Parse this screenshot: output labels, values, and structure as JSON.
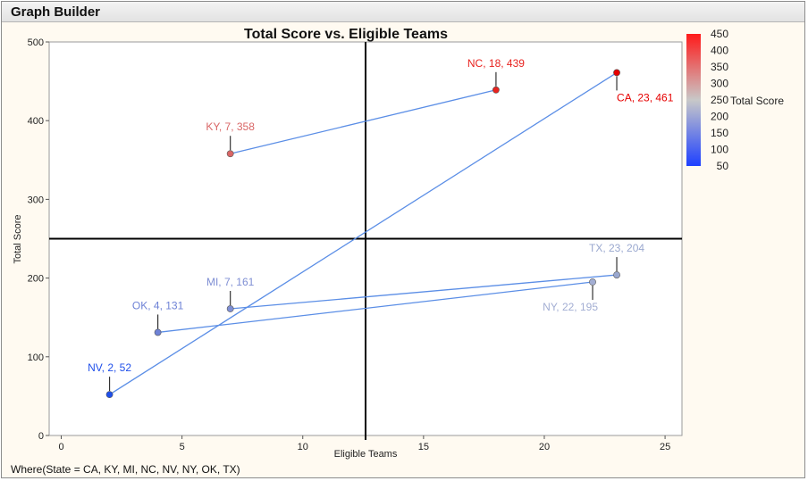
{
  "window": {
    "title": "Graph Builder"
  },
  "footer": {
    "where_clause": "Where(State = CA, KY, MI, NC, NV, NY, OK, TX)"
  },
  "chart_data": {
    "type": "scatter",
    "title": "Total Score vs. Eligible Teams",
    "xlabel": "Eligible Teams",
    "ylabel": "Total Score",
    "xlim": [
      -0.5,
      25.7
    ],
    "ylim": [
      0,
      500
    ],
    "xticks": [
      0,
      5,
      10,
      15,
      20,
      25
    ],
    "yticks": [
      0,
      100,
      200,
      300,
      400,
      500
    ],
    "grid": false,
    "reference_lines": {
      "x": 12.6,
      "y": 250
    },
    "points": [
      {
        "state": "KY",
        "x": 7,
        "y": 358,
        "label": "KY, 7, 358",
        "color": "#d96666",
        "label_pos": "above"
      },
      {
        "state": "NC",
        "x": 18,
        "y": 439,
        "label": "NC, 18, 439",
        "color": "#e8231f",
        "label_pos": "above"
      },
      {
        "state": "CA",
        "x": 23,
        "y": 461,
        "label": "CA, 23, 461",
        "color": "#e60000",
        "label_pos": "below"
      },
      {
        "state": "TX",
        "x": 23,
        "y": 204,
        "label": "TX, 23, 204",
        "color": "#9aa8cf",
        "label_pos": "above"
      },
      {
        "state": "NY",
        "x": 22,
        "y": 195,
        "label": "NY, 22, 195",
        "color": "#a3aed3",
        "label_pos": "below"
      },
      {
        "state": "MI",
        "x": 7,
        "y": 161,
        "label": "MI, 7, 161",
        "color": "#7f8fd4",
        "label_pos": "above"
      },
      {
        "state": "OK",
        "x": 4,
        "y": 131,
        "label": "OK, 4, 131",
        "color": "#6e82d6",
        "label_pos": "above"
      },
      {
        "state": "NV",
        "x": 2,
        "y": 52,
        "label": "NV, 2, 52",
        "color": "#1f4fea",
        "label_pos": "above"
      }
    ],
    "connecting_lines": [
      [
        "KY",
        "NC"
      ],
      [
        "NV",
        "CA"
      ],
      [
        "OK",
        "NY"
      ],
      [
        "MI",
        "TX"
      ]
    ],
    "line_color": "#5b8ee6",
    "legend": {
      "title": "Total Score",
      "placement": "right",
      "min": 50,
      "max": 450,
      "ticks": [
        450,
        400,
        350,
        300,
        250,
        200,
        150,
        100,
        50
      ],
      "color_low": "#1e40ff",
      "color_mid": "#c8c8c8",
      "color_high": "#ff1a1a"
    }
  }
}
